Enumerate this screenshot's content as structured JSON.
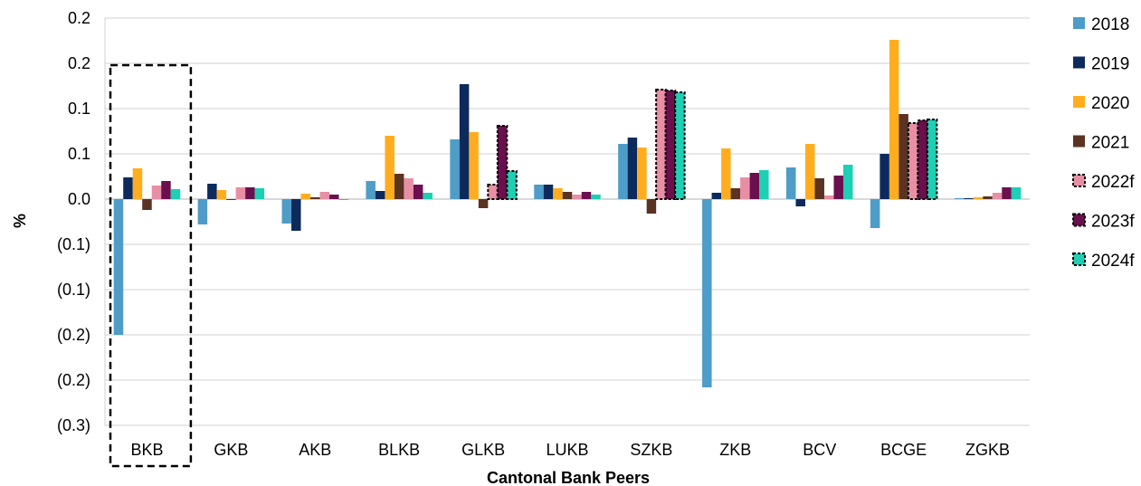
{
  "chart_data": {
    "type": "bar",
    "title": "",
    "xlabel": "Cantonal Bank Peers",
    "ylabel": "%",
    "y_ticks": [
      {
        "value": 0.2,
        "label": "0.2"
      },
      {
        "value": 0.15,
        "label": "0.2"
      },
      {
        "value": 0.1,
        "label": "0.1"
      },
      {
        "value": 0.05,
        "label": "0.1"
      },
      {
        "value": 0.0,
        "label": "0.0"
      },
      {
        "value": -0.05,
        "label": "(0.1)"
      },
      {
        "value": -0.1,
        "label": "(0.1)"
      },
      {
        "value": -0.15,
        "label": "(0.2)"
      },
      {
        "value": -0.2,
        "label": "(0.2)"
      },
      {
        "value": -0.25,
        "label": "(0.3)"
      }
    ],
    "ylim": [
      -0.25,
      0.2
    ],
    "grid": true,
    "legend_position": "right",
    "highlighted_category": "BKB",
    "categories": [
      "BKB",
      "GKB",
      "AKB",
      "BLKB",
      "GLKB",
      "LUKB",
      "SZKB",
      "ZKB",
      "BCV",
      "BCGE",
      "ZGKB"
    ],
    "dashed_border_categories": [
      "GLKB",
      "SZKB",
      "BCGE"
    ],
    "series": [
      {
        "name": "2018",
        "color": "#4e9cc8",
        "style": "solid",
        "values": [
          -0.15,
          -0.028,
          -0.027,
          0.02,
          0.066,
          0.016,
          0.061,
          -0.208,
          0.035,
          -0.032,
          0.001
        ]
      },
      {
        "name": "2019",
        "color": "#0d2a5c",
        "style": "solid",
        "values": [
          0.024,
          0.017,
          -0.035,
          0.009,
          0.127,
          0.016,
          0.068,
          0.007,
          -0.008,
          0.05,
          0.001
        ]
      },
      {
        "name": "2020",
        "color": "#ffad1f",
        "style": "solid",
        "values": [
          0.034,
          0.01,
          0.006,
          0.07,
          0.074,
          0.012,
          0.057,
          0.056,
          0.061,
          0.176,
          0.002
        ]
      },
      {
        "name": "2021",
        "color": "#5a3322",
        "style": "solid",
        "values": [
          -0.012,
          -0.001,
          0.002,
          0.028,
          -0.01,
          0.008,
          -0.016,
          0.012,
          0.023,
          0.094,
          0.003
        ]
      },
      {
        "name": "2022f",
        "color": "#e88fa6",
        "style": "dashed",
        "values": [
          0.015,
          0.013,
          0.008,
          0.023,
          0.016,
          0.005,
          0.121,
          0.024,
          0.004,
          0.084,
          0.007
        ]
      },
      {
        "name": "2023f",
        "color": "#6b0f4f",
        "style": "dashed",
        "values": [
          0.02,
          0.013,
          0.005,
          0.016,
          0.081,
          0.008,
          0.12,
          0.029,
          0.026,
          0.087,
          0.013
        ]
      },
      {
        "name": "2024f",
        "color": "#1dcfb3",
        "style": "dashed",
        "values": [
          0.011,
          0.012,
          0.0,
          0.007,
          0.031,
          0.005,
          0.118,
          0.032,
          0.038,
          0.088,
          0.013
        ]
      }
    ]
  }
}
